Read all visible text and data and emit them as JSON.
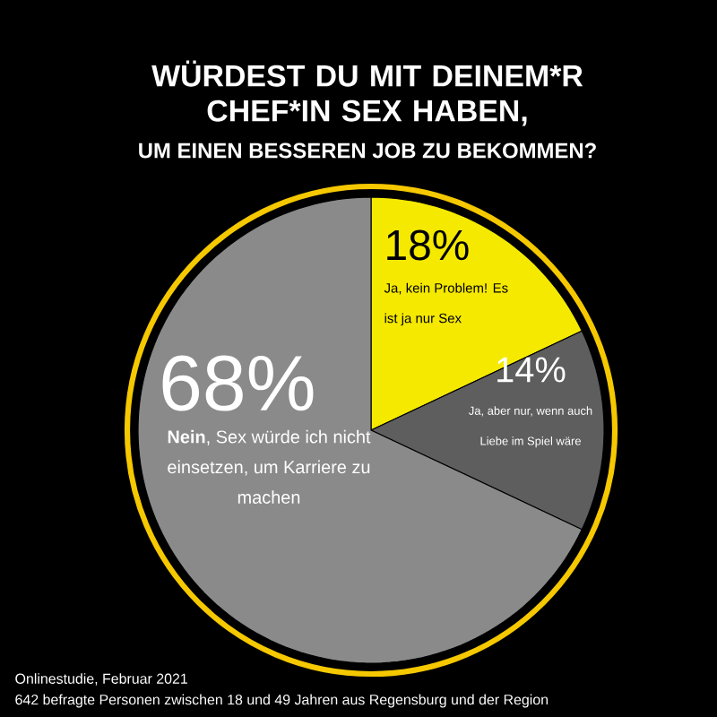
{
  "chart_data": {
    "type": "pie",
    "title": "WÜRDEST DU MIT DEINEM*R CHEF*IN SEX HABEN,",
    "subtitle": "UM EINEN BESSEREN JOB ZU BEKOMMEN?",
    "categories": [
      "Ja, kein Problem! Es ist ja nur Sex",
      "Ja, aber nur, wenn auch Liebe im Spiel wäre",
      "**Nein**, Sex würde ich nicht einsetzen, um Karriere zu machen"
    ],
    "values": [
      18,
      14,
      68
    ],
    "value_labels": [
      "18%",
      "14%",
      "68%"
    ],
    "colors": [
      "#f5e900",
      "#5e5e5e",
      "#8a8a8a"
    ],
    "legend": false,
    "annotations": [
      "Onlinestudie, Februar 2021",
      "642 befragte Personen zwischen 18 und 49 Jahren aus Regensburg und der Region"
    ]
  }
}
